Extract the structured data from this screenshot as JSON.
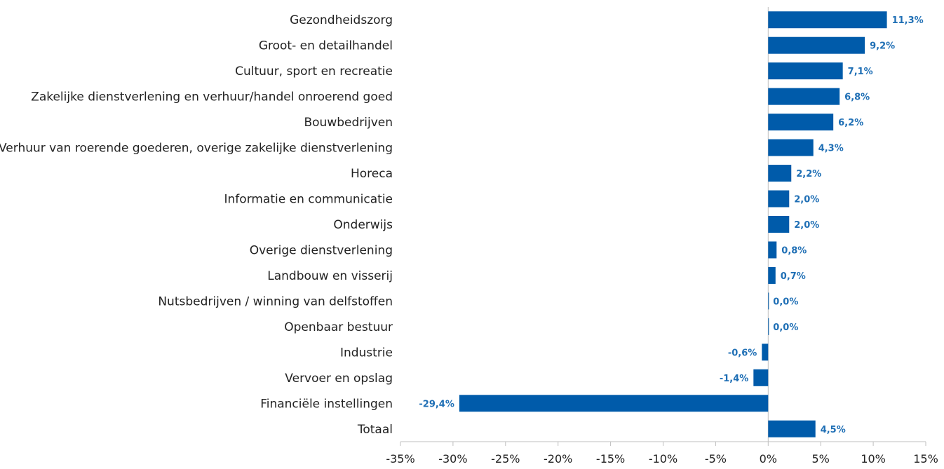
{
  "chart_data": {
    "type": "bar",
    "orientation": "horizontal",
    "categories": [
      "Gezondheidszorg",
      "Groot- en detailhandel",
      "Cultuur, sport en recreatie",
      "Zakelijke dienstverlening en verhuur/handel onroerend goed",
      "Bouwbedrijven",
      "Verhuur van roerende goederen, overige zakelijke dienstverlening",
      "Horeca",
      "Informatie en communicatie",
      "Onderwijs",
      "Overige dienstverlening",
      "Landbouw en visserij",
      "Nutsbedrijven / winning van delfstoffen",
      "Openbaar bestuur",
      "Industrie",
      "Vervoer en opslag",
      "Financiële instellingen",
      "Totaal"
    ],
    "values": [
      11.3,
      9.2,
      7.1,
      6.8,
      6.2,
      4.3,
      2.2,
      2.0,
      2.0,
      0.8,
      0.7,
      0.0,
      0.0,
      -0.6,
      -1.4,
      -29.4,
      4.5
    ],
    "data_labels": [
      "11,3%",
      "9,2%",
      "7,1%",
      "6,8%",
      "6,2%",
      "4,3%",
      "2,2%",
      "2,0%",
      "2,0%",
      "0,8%",
      "0,7%",
      "0,0%",
      "0,0%",
      "-0,6%",
      "-1,4%",
      "-29,4%",
      "4,5%"
    ],
    "xlim": [
      -35,
      15
    ],
    "x_ticks": [
      -35,
      -30,
      -25,
      -20,
      -15,
      -10,
      -5,
      0,
      5,
      10,
      15
    ],
    "x_tick_labels": [
      "-35%",
      "-30%",
      "-25%",
      "-20%",
      "-15%",
      "-10%",
      "-5%",
      "0%",
      "5%",
      "10%",
      "15%"
    ],
    "title": "",
    "xlabel": "",
    "ylabel": "",
    "grid": false,
    "legend": "none",
    "colors": {
      "bar": "#005BAA",
      "data_label": "#1F6FB5",
      "axis": "#BFBFBF",
      "text": "#222222"
    }
  }
}
